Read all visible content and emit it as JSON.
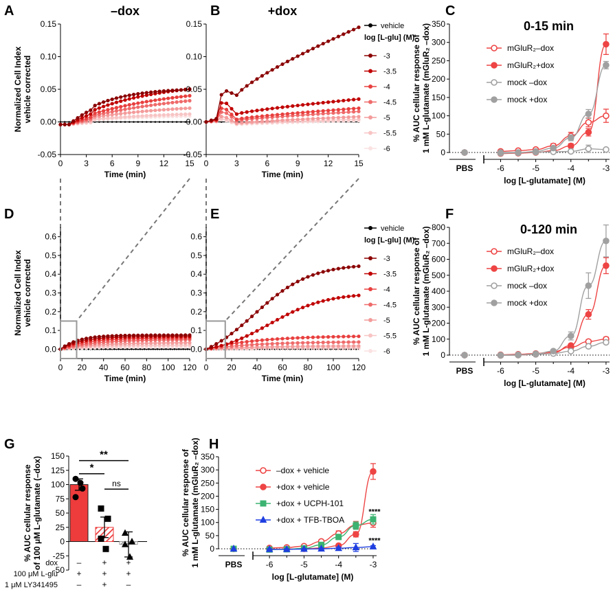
{
  "figure_labels": [
    "A",
    "B",
    "C",
    "D",
    "E",
    "F",
    "G",
    "H"
  ],
  "colors": {
    "dox": [
      "#8B0000",
      "#C00000",
      "#E8403F",
      "#EF6A6A",
      "#F49B9B",
      "#F8C4C4",
      "#FBE2E2"
    ],
    "vehicle": "#000000",
    "mglur_red": "#EE4444",
    "mock_grey": "#A0A0A0",
    "ucph_green": "#3CB371",
    "tfb_blue": "#1F3FE0",
    "bar_red": "#EE3B3B",
    "bar_grey": "#9A9A9A"
  },
  "concentration_legend": {
    "vehicle_label": "vehicle",
    "title": "log [L-glu] (M)",
    "labels": [
      "-3",
      "-3.5",
      "-4",
      "-4.5",
      "-5",
      "-5.5",
      "-6"
    ]
  },
  "chart_data": [
    {
      "id": "A",
      "type": "line",
      "title": "–dox",
      "xlabel": "Time (min)",
      "ylabel": [
        "Normalized Cell Index",
        "vehicle corrected"
      ],
      "xlim": [
        0,
        15
      ],
      "ylim": [
        -0.05,
        0.15
      ],
      "xticks": [
        0,
        3,
        6,
        9,
        12,
        15
      ],
      "yticks": [
        -0.05,
        0.0,
        0.05,
        0.1,
        0.15
      ],
      "series": [
        {
          "name": "-3",
          "shape": "rise",
          "plateau": 0.052,
          "rate": 0.22
        },
        {
          "name": "-3.5",
          "shape": "rise",
          "plateau": 0.062,
          "rate": 0.12
        },
        {
          "name": "-4",
          "shape": "rise",
          "plateau": 0.056,
          "rate": 0.09
        },
        {
          "name": "-4.5",
          "shape": "rise",
          "plateau": 0.05,
          "rate": 0.075
        },
        {
          "name": "-5",
          "shape": "rise",
          "plateau": 0.028,
          "rate": 0.1
        },
        {
          "name": "-5.5",
          "shape": "rise",
          "plateau": 0.016,
          "rate": 0.1
        },
        {
          "name": "-6",
          "shape": "rise",
          "plateau": 0.012,
          "rate": 0.1
        },
        {
          "name": "vehicle",
          "shape": "flat",
          "plateau": 0.0
        }
      ]
    },
    {
      "id": "B",
      "type": "line",
      "title": "+dox",
      "xlabel": "Time (min)",
      "ylabel": [],
      "xlim": [
        0,
        15
      ],
      "ylim": [
        -0.05,
        0.15
      ],
      "xticks": [
        0,
        3,
        6,
        9,
        12,
        15
      ],
      "yticks": [
        -0.05,
        0.0,
        0.05,
        0.1,
        0.15
      ],
      "series": [
        {
          "name": "-3",
          "shape": "spike",
          "peak": 0.05,
          "dip": 0.041,
          "end": 0.145
        },
        {
          "name": "-3.5",
          "shape": "spike",
          "peak": 0.035,
          "dip": 0.012,
          "end": 0.035
        },
        {
          "name": "-4",
          "shape": "spike",
          "peak": 0.025,
          "dip": 0.004,
          "end": 0.021
        },
        {
          "name": "-4.5",
          "shape": "spike",
          "peak": 0.018,
          "dip": 0.002,
          "end": 0.016
        },
        {
          "name": "-5",
          "shape": "spike",
          "peak": 0.01,
          "dip": -0.002,
          "end": 0.008
        },
        {
          "name": "-5.5",
          "shape": "spike",
          "peak": 0.006,
          "dip": -0.003,
          "end": 0.004
        },
        {
          "name": "-6",
          "shape": "spike",
          "peak": 0.004,
          "dip": -0.004,
          "end": 0.002
        },
        {
          "name": "vehicle",
          "shape": "flat",
          "plateau": 0.0
        }
      ]
    },
    {
      "id": "D",
      "type": "line",
      "title": "",
      "xlabel": "Time (min)",
      "ylabel": [
        "Normalized Cell Index",
        "vehicle corrected"
      ],
      "xlim": [
        0,
        120
      ],
      "ylim": [
        -0.05,
        0.65
      ],
      "xticks": [
        0,
        20,
        40,
        60,
        80,
        100,
        120
      ],
      "yticks": [
        0.0,
        0.1,
        0.2,
        0.3,
        0.4,
        0.5,
        0.6
      ],
      "series": [
        {
          "name": "-3",
          "shape": "rise",
          "plateau": 0.075,
          "rate": 0.12
        },
        {
          "name": "-3.5",
          "shape": "rise",
          "plateau": 0.068,
          "rate": 0.1
        },
        {
          "name": "-4",
          "shape": "rise",
          "plateau": 0.06,
          "rate": 0.08
        },
        {
          "name": "-4.5",
          "shape": "rise",
          "plateau": 0.052,
          "rate": 0.06
        },
        {
          "name": "-5",
          "shape": "rise",
          "plateau": 0.035,
          "rate": 0.06
        },
        {
          "name": "-5.5",
          "shape": "rise",
          "plateau": 0.022,
          "rate": 0.06
        },
        {
          "name": "-6",
          "shape": "rise",
          "plateau": 0.012,
          "rate": 0.06
        },
        {
          "name": "vehicle",
          "shape": "flat",
          "plateau": 0.0
        }
      ]
    },
    {
      "id": "E",
      "type": "line",
      "title": "",
      "xlabel": "Time (min)",
      "ylabel": [],
      "xlim": [
        0,
        120
      ],
      "ylim": [
        -0.05,
        0.65
      ],
      "xticks": [
        0,
        20,
        40,
        60,
        80,
        100,
        120
      ],
      "yticks": [
        0.0,
        0.1,
        0.2,
        0.3,
        0.4,
        0.5,
        0.6
      ],
      "series": [
        {
          "name": "-3",
          "shape": "sigmoid",
          "plateau": 0.455,
          "mid": 38,
          "k": 22
        },
        {
          "name": "-3.5",
          "shape": "sigmoid",
          "plateau": 0.3,
          "mid": 50,
          "k": 22
        },
        {
          "name": "-4",
          "shape": "rise",
          "plateau": 0.072,
          "rate": 0.05
        },
        {
          "name": "-4.5",
          "shape": "rise",
          "plateau": 0.04,
          "rate": 0.05
        },
        {
          "name": "-5",
          "shape": "rise",
          "plateau": 0.018,
          "rate": 0.05
        },
        {
          "name": "-5.5",
          "shape": "rise",
          "plateau": 0.008,
          "rate": 0.05
        },
        {
          "name": "-6",
          "shape": "rise",
          "plateau": 0.002,
          "rate": 0.05
        },
        {
          "name": "vehicle",
          "shape": "flat",
          "plateau": 0.0
        }
      ]
    },
    {
      "id": "C",
      "type": "scatter",
      "title": "0-15 min",
      "xlabel": "log [L-glutamate] (M)",
      "ylabel": [
        "% AUC cellular response of",
        "1 mM L-glutamate (mGluR₂ –dox)"
      ],
      "xticks": [
        -6,
        -5,
        -4,
        -3
      ],
      "xlim": [
        -6.4,
        -2.9
      ],
      "ylim": [
        0,
        350
      ],
      "yticks": [
        0,
        50,
        100,
        150,
        200,
        250,
        300,
        350
      ],
      "pbs_label": "PBS",
      "x": [
        -6,
        -5.5,
        -5,
        -4.5,
        -4,
        -3.5,
        -3
      ],
      "series": [
        {
          "name": "mGluR₂–dox",
          "style": "open-red",
          "values": [
            3,
            5,
            8,
            18,
            45,
            82,
            100
          ],
          "err": [
            2,
            3,
            4,
            6,
            10,
            12,
            18
          ],
          "pbs": 0
        },
        {
          "name": "mGluR₂+dox",
          "style": "filled-red",
          "values": [
            -3,
            -2,
            0,
            5,
            18,
            55,
            295
          ],
          "err": [
            2,
            2,
            3,
            4,
            6,
            10,
            28
          ],
          "pbs": 0
        },
        {
          "name": "mock –dox",
          "style": "open-grey",
          "values": [
            0,
            0,
            1,
            2,
            3,
            10,
            8
          ],
          "err": [
            1,
            1,
            1,
            2,
            2,
            10,
            3
          ],
          "pbs": 0
        },
        {
          "name": "mock +dox",
          "style": "filled-grey",
          "values": [
            -2,
            -1,
            3,
            12,
            40,
            105,
            238
          ],
          "err": [
            2,
            2,
            3,
            4,
            8,
            12,
            10
          ],
          "pbs": 0
        }
      ]
    },
    {
      "id": "F",
      "type": "scatter",
      "title": "0-120 min",
      "xlabel": "log [L-glutamate] (M)",
      "ylabel": [
        "% AUC cellular response of",
        "1 mM L-glutamate (mGluR₂ –dox)"
      ],
      "xticks": [
        -6,
        -5,
        -4,
        -3
      ],
      "xlim": [
        -6.4,
        -2.9
      ],
      "ylim": [
        0,
        800
      ],
      "yticks": [
        0,
        100,
        200,
        300,
        400,
        500,
        600,
        700,
        800
      ],
      "pbs_label": "PBS",
      "x": [
        -6,
        -5.5,
        -5,
        -4.5,
        -4,
        -3.5,
        -3
      ],
      "series": [
        {
          "name": "mGluR₂–dox",
          "style": "open-red",
          "values": [
            2,
            5,
            10,
            22,
            50,
            85,
            100
          ],
          "err": [
            2,
            3,
            4,
            5,
            8,
            10,
            12
          ],
          "pbs": 0
        },
        {
          "name": "mGluR₂+dox",
          "style": "filled-red",
          "values": [
            -2,
            0,
            5,
            15,
            60,
            255,
            560
          ],
          "err": [
            2,
            2,
            3,
            4,
            8,
            30,
            50
          ],
          "pbs": 0
        },
        {
          "name": "mock –dox",
          "style": "open-grey",
          "values": [
            0,
            2,
            5,
            10,
            25,
            55,
            80
          ],
          "err": [
            1,
            1,
            2,
            3,
            5,
            8,
            10
          ],
          "pbs": 0
        },
        {
          "name": "mock +dox",
          "style": "filled-grey",
          "values": [
            -2,
            0,
            8,
            25,
            120,
            435,
            715
          ],
          "err": [
            2,
            2,
            3,
            5,
            25,
            80,
            100
          ],
          "pbs": 0
        }
      ]
    },
    {
      "id": "H",
      "type": "scatter",
      "title": "",
      "xlabel": "log [L-glutamate] (M)",
      "ylabel": [
        "% AUC cellular response of",
        "1 mM L-glutamate (mGluR₂ –dox)"
      ],
      "xticks": [
        -6,
        -5,
        -4,
        -3
      ],
      "xlim": [
        -6.4,
        -2.9
      ],
      "ylim": [
        0,
        350
      ],
      "yticks": [
        0,
        50,
        100,
        150,
        200,
        250,
        300,
        350
      ],
      "pbs_label": "PBS",
      "x": [
        -6,
        -5.5,
        -5,
        -4.5,
        -4,
        -3.5,
        -3
      ],
      "series": [
        {
          "name": "–dox + vehicle",
          "style": "open-red",
          "values": [
            3,
            5,
            10,
            28,
            58,
            90,
            98
          ],
          "err": [
            2,
            3,
            4,
            6,
            10,
            14,
            16
          ],
          "pbs": 0
        },
        {
          "name": "+dox + vehicle",
          "style": "filled-red",
          "values": [
            -2,
            -1,
            0,
            3,
            12,
            55,
            294
          ],
          "err": [
            2,
            2,
            3,
            4,
            6,
            10,
            30
          ],
          "pbs": 0
        },
        {
          "name": "+dox + UCPH-101",
          "style": "square-green",
          "values": [
            -3,
            -2,
            2,
            15,
            45,
            88,
            112
          ],
          "err": [
            2,
            2,
            3,
            5,
            10,
            14,
            18
          ],
          "pbs": 0
        },
        {
          "name": "+dox + TFB-TBOA",
          "style": "triangle-blue",
          "values": [
            -2,
            -2,
            -1,
            0,
            2,
            5,
            8
          ],
          "err": [
            2,
            2,
            2,
            3,
            5,
            15,
            4
          ],
          "pbs": 0
        }
      ],
      "annotations": [
        {
          "text": "****",
          "color": "#3CB371",
          "x": -3,
          "y": 132
        },
        {
          "text": "****",
          "color": "#1F3FE0",
          "x": -3,
          "y": 22
        }
      ]
    },
    {
      "id": "G",
      "type": "bar",
      "ylabel": [
        "% AUC cellular response",
        "of 100 μM L-glutamate (–dox)"
      ],
      "ylim": [
        -50,
        150
      ],
      "yticks": [
        -50,
        -25,
        0,
        25,
        50,
        75,
        100,
        125,
        150
      ],
      "bars": [
        {
          "value": 100,
          "err": 10,
          "fill": "solid-red",
          "points": [
            110,
            93,
            78,
            103
          ],
          "marker": "circle"
        },
        {
          "value": 25,
          "err": 18,
          "fill": "hatched-red",
          "points": [
            58,
            40,
            5,
            -13
          ],
          "marker": "square"
        },
        {
          "value": -5,
          "err": 22,
          "fill": "hatched-grey",
          "points": [
            15,
            0,
            -5,
            -27
          ],
          "marker": "triangle"
        }
      ],
      "significance": [
        {
          "from": 0,
          "to": 2,
          "label": "**"
        },
        {
          "from": 0,
          "to": 1,
          "label": "*"
        },
        {
          "from": 1,
          "to": 2,
          "label": "ns"
        }
      ],
      "conditions": [
        {
          "label": "dox",
          "values": [
            "–",
            "+",
            "+"
          ]
        },
        {
          "label": "100 μM L-glu",
          "values": [
            "+",
            "+",
            "+"
          ]
        },
        {
          "label": "1 μM LY341495",
          "values": [
            "–",
            "+",
            "–"
          ]
        }
      ]
    }
  ]
}
